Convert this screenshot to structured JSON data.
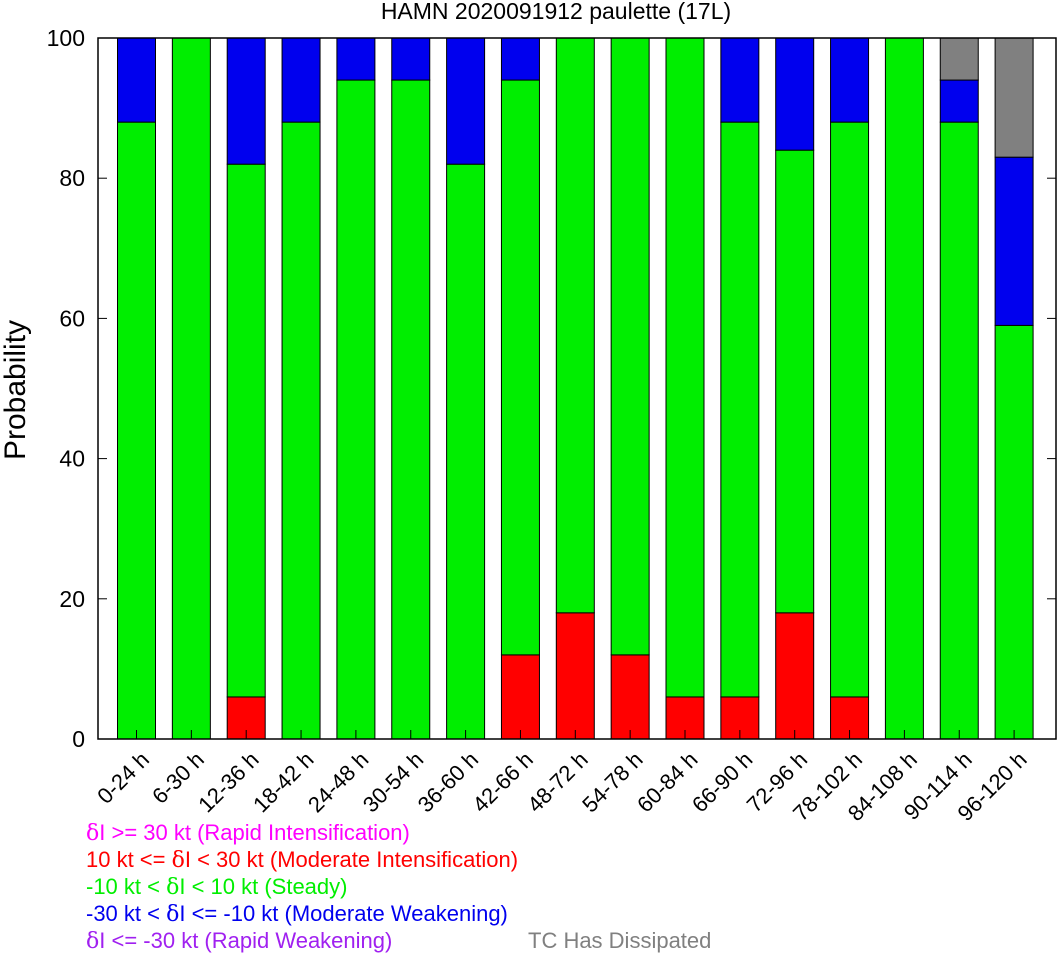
{
  "chart_data": {
    "type": "bar",
    "stacked": true,
    "title": "HAMN 2020091912 paulette (17L)",
    "xlabel": "",
    "ylabel": "Probability",
    "ylim": [
      0,
      100
    ],
    "yticks": [
      0,
      20,
      40,
      60,
      80,
      100
    ],
    "categories": [
      "0-24 h",
      "6-30 h",
      "12-36 h",
      "18-42 h",
      "24-48 h",
      "30-54 h",
      "36-60 h",
      "42-66 h",
      "48-72 h",
      "54-78 h",
      "60-84 h",
      "66-90 h",
      "72-96 h",
      "78-102 h",
      "84-108 h",
      "90-114 h",
      "96-120 h"
    ],
    "series": [
      {
        "name": "Rapid Intensification",
        "color": "#ff00ff",
        "values": [
          0,
          0,
          0,
          0,
          0,
          0,
          0,
          0,
          0,
          0,
          0,
          0,
          0,
          0,
          0,
          0,
          0
        ]
      },
      {
        "name": "Moderate Intensification",
        "color": "#ff0000",
        "values": [
          0,
          0,
          6,
          0,
          0,
          0,
          0,
          12,
          18,
          12,
          6,
          6,
          18,
          6,
          0,
          0,
          0
        ]
      },
      {
        "name": "Steady",
        "color": "#00ee00",
        "values": [
          88,
          100,
          76,
          88,
          94,
          94,
          82,
          82,
          82,
          88,
          94,
          82,
          66,
          82,
          100,
          88,
          59
        ]
      },
      {
        "name": "Moderate Weakening",
        "color": "#0000ee",
        "values": [
          12,
          0,
          18,
          12,
          6,
          6,
          18,
          6,
          0,
          0,
          0,
          12,
          16,
          12,
          0,
          6,
          24
        ]
      },
      {
        "name": "Rapid Weakening",
        "color": "#a020f0",
        "values": [
          0,
          0,
          0,
          0,
          0,
          0,
          0,
          0,
          0,
          0,
          0,
          0,
          0,
          0,
          0,
          0,
          0
        ]
      },
      {
        "name": "TC Has Dissipated",
        "color": "#808080",
        "values": [
          0,
          0,
          0,
          0,
          0,
          0,
          0,
          0,
          0,
          0,
          0,
          0,
          0,
          0,
          0,
          6,
          17
        ]
      }
    ]
  },
  "legend": [
    {
      "prefix": "δ",
      "text": "I >= 30 kt (Rapid Intensification)",
      "color": "#ff00ff"
    },
    {
      "text": "10 kt <= ",
      "gk": "δ",
      "text2": "I < 30 kt (Moderate Intensification)",
      "color": "#ff0000"
    },
    {
      "text": "-10 kt < ",
      "gk": "δ",
      "text2": "I < 10 kt (Steady)",
      "color": "#00ee00"
    },
    {
      "text": "-30 kt < ",
      "gk": "δ",
      "text2": "I <= -10 kt (Moderate Weakening)",
      "color": "#0000ee"
    },
    {
      "prefix": "δ",
      "text": "I <= -30 kt (Rapid Weakening)",
      "color": "#a020f0"
    },
    {
      "text": "TC Has Dissipated",
      "color": "#808080"
    }
  ]
}
